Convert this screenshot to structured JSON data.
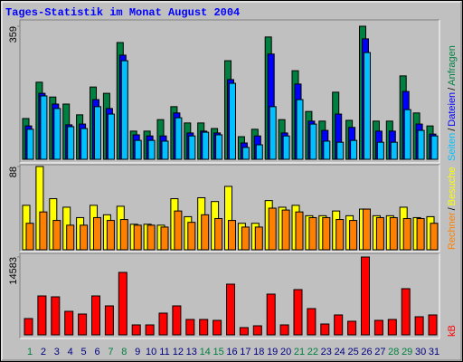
{
  "title": "Tages-Statistik im Monat August 2004",
  "legend_separator": "/",
  "chart_data": [
    {
      "type": "bar",
      "categories": [
        "1",
        "2",
        "3",
        "4",
        "5",
        "6",
        "7",
        "8",
        "9",
        "10",
        "11",
        "12",
        "13",
        "14",
        "15",
        "16",
        "17",
        "18",
        "19",
        "20",
        "21",
        "22",
        "23",
        "24",
        "25",
        "26",
        "27",
        "28",
        "29",
        "30",
        "31"
      ],
      "category_colors": [
        "#008040",
        "#000080",
        "#000080",
        "#000080",
        "#000080",
        "#000080",
        "#008040",
        "#008040",
        "#000080",
        "#000080",
        "#000080",
        "#000080",
        "#000080",
        "#008040",
        "#008040",
        "#000080",
        "#000080",
        "#000080",
        "#000080",
        "#000080",
        "#008040",
        "#008040",
        "#000080",
        "#000080",
        "#000080",
        "#000080",
        "#000080",
        "#008040",
        "#008040",
        "#000080",
        "#000080"
      ],
      "ylim": [
        0,
        359
      ],
      "yticks": [
        359
      ],
      "series": [
        {
          "name": "Anfragen",
          "color": "#008040",
          "values": [
            110,
            208,
            168,
            149,
            120,
            195,
            178,
            315,
            76,
            76,
            107,
            142,
            98,
            98,
            83,
            266,
            61,
            81,
            330,
            107,
            239,
            129,
            103,
            181,
            105,
            359,
            103,
            103,
            225,
            125,
            90
          ]
        },
        {
          "name": "Dateien",
          "color": "#0000ff",
          "values": [
            90,
            178,
            149,
            93,
            95,
            161,
            137,
            281,
            66,
            63,
            63,
            125,
            71,
            76,
            71,
            215,
            44,
            63,
            284,
            71,
            203,
            103,
            78,
            122,
            86,
            325,
            76,
            76,
            183,
            95,
            68
          ]
        },
        {
          "name": "Seiten",
          "color": "#00c0ff",
          "values": [
            81,
            171,
            137,
            88,
            83,
            142,
            122,
            266,
            51,
            51,
            49,
            112,
            63,
            73,
            66,
            205,
            32,
            39,
            142,
            63,
            161,
            95,
            49,
            46,
            51,
            288,
            46,
            46,
            134,
            78,
            63
          ]
        }
      ]
    },
    {
      "type": "bar",
      "ylim": [
        0,
        88
      ],
      "yticks": [
        88
      ],
      "series": [
        {
          "name": "Besuche",
          "color": "#ffff00",
          "values": [
            47,
            88,
            54,
            45,
            34,
            47,
            37,
            46,
            27,
            27,
            26,
            54,
            35,
            55,
            51,
            67,
            28,
            28,
            52,
            45,
            47,
            36,
            36,
            41,
            36,
            43,
            36,
            36,
            45,
            34,
            35
          ]
        },
        {
          "name": "Rechner",
          "color": "#ff8000",
          "values": [
            28,
            40,
            31,
            26,
            26,
            34,
            31,
            32,
            26,
            26,
            24,
            41,
            29,
            37,
            33,
            31,
            24,
            24,
            44,
            42,
            40,
            34,
            34,
            32,
            31,
            43,
            34,
            34,
            33,
            33,
            28
          ]
        }
      ]
    },
    {
      "type": "bar",
      "ylim": [
        0,
        14583
      ],
      "yticks": [
        14583
      ],
      "series": [
        {
          "name": "kB",
          "color": "#ff0000",
          "values": [
            3052,
            7292,
            7122,
            4409,
            3900,
            7292,
            5427,
            11700,
            1865,
            1865,
            4070,
            5427,
            2883,
            2883,
            2713,
            9496,
            1357,
            1696,
            7631,
            1865,
            8479,
            4918,
            2035,
            3731,
            2544,
            14583,
            2713,
            2883,
            8649,
            3392,
            3731
          ]
        }
      ]
    }
  ]
}
